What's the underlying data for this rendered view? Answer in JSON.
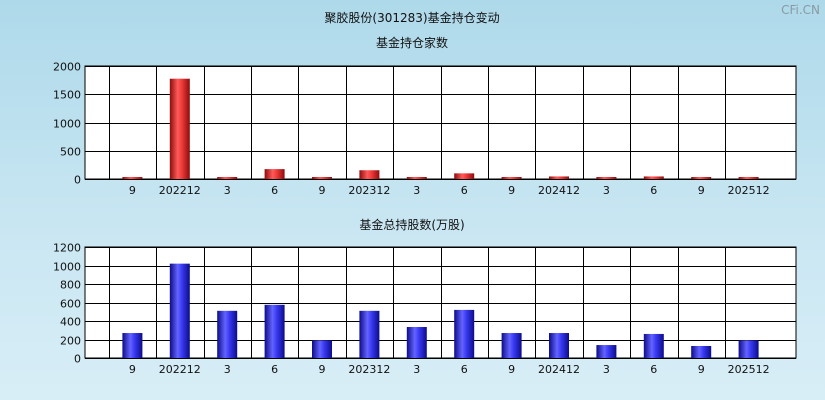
{
  "page_title": "聚胶股份(301283)基金持仓变动",
  "watermark": "CFi.CN",
  "colors": {
    "red_bar": "#e02020",
    "blue_bar": "#2424e8",
    "plot_bg": "#ffffff",
    "grid": "#000000"
  },
  "chart_data": [
    {
      "type": "bar",
      "title": "基金持仓家数",
      "categories": [
        "9",
        "202212",
        "3",
        "6",
        "9",
        "202312",
        "3",
        "6",
        "9",
        "202412",
        "3",
        "6",
        "9",
        "202512"
      ],
      "values": [
        30,
        1775,
        25,
        175,
        25,
        155,
        25,
        100,
        30,
        45,
        30,
        45,
        30,
        30
      ],
      "ylim": [
        0,
        2000
      ],
      "yticks": [
        0,
        500,
        1000,
        1500,
        2000
      ],
      "grid": true
    },
    {
      "type": "bar",
      "title": "基金总持股数(万股)",
      "categories": [
        "9",
        "202212",
        "3",
        "6",
        "9",
        "202312",
        "3",
        "6",
        "9",
        "202412",
        "3",
        "6",
        "9",
        "202512"
      ],
      "values": [
        270,
        1020,
        510,
        575,
        190,
        510,
        335,
        520,
        270,
        270,
        140,
        260,
        130,
        190
      ],
      "ylim": [
        0,
        1200
      ],
      "yticks": [
        0,
        200,
        400,
        600,
        800,
        1000,
        1200
      ],
      "grid": true
    }
  ]
}
